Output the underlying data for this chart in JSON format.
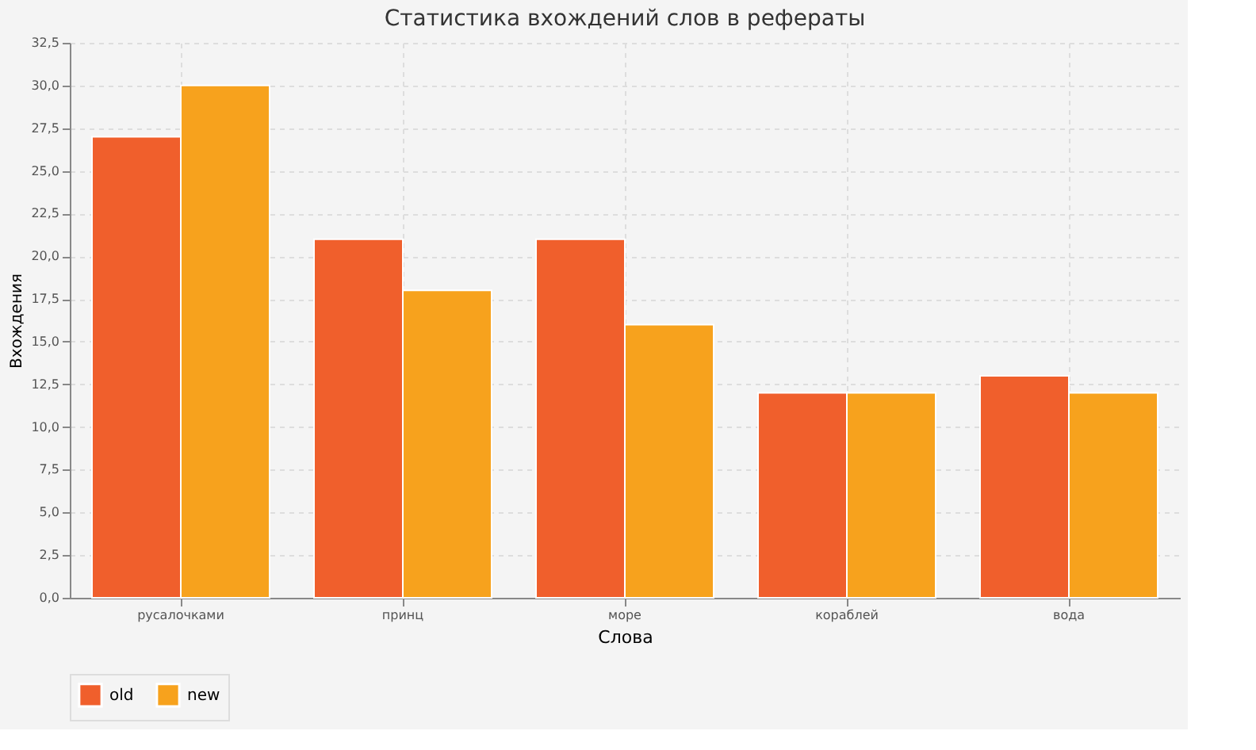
{
  "chart_data": {
    "type": "bar",
    "title": "Статистика вхождений слов в рефераты",
    "xlabel": "Слова",
    "ylabel": "Вхождения",
    "categories": [
      "русалочками",
      "принц",
      "море",
      "кораблей",
      "вода"
    ],
    "series": [
      {
        "name": "old",
        "color": "#f05f2c",
        "values": [
          27,
          21,
          21,
          12,
          13
        ]
      },
      {
        "name": "new",
        "color": "#f7a21d",
        "values": [
          30,
          18,
          16,
          12,
          12
        ]
      }
    ],
    "ylim": [
      0,
      32.5
    ],
    "yticks": [
      {
        "value": 0,
        "label": "0,0"
      },
      {
        "value": 2.5,
        "label": "2,5"
      },
      {
        "value": 5,
        "label": "5,0"
      },
      {
        "value": 7.5,
        "label": "7,5"
      },
      {
        "value": 10,
        "label": "10,0"
      },
      {
        "value": 12.5,
        "label": "12,5"
      },
      {
        "value": 15,
        "label": "15,0"
      },
      {
        "value": 17.5,
        "label": "17,5"
      },
      {
        "value": 20,
        "label": "20,0"
      },
      {
        "value": 22.5,
        "label": "22,5"
      },
      {
        "value": 25,
        "label": "25,0"
      },
      {
        "value": 27.5,
        "label": "27,5"
      },
      {
        "value": 30,
        "label": "30,0"
      },
      {
        "value": 32.5,
        "label": "32,5"
      }
    ],
    "grid": true,
    "legend": "bottom"
  }
}
